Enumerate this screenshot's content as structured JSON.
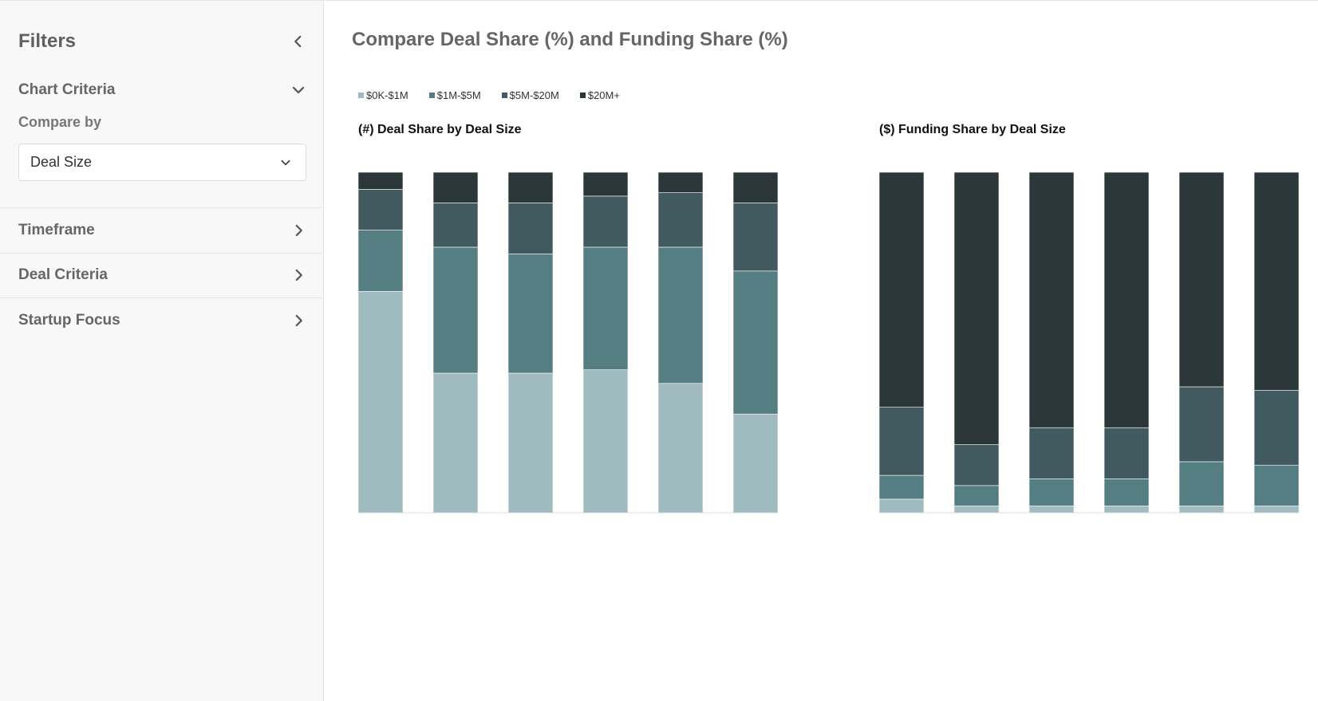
{
  "sidebar": {
    "title": "Filters",
    "chart_criteria": {
      "label": "Chart Criteria",
      "compare_label": "Compare by",
      "compare_value": "Deal Size"
    },
    "sections": [
      {
        "label": "Timeframe"
      },
      {
        "label": "Deal Criteria"
      },
      {
        "label": "Startup Focus"
      }
    ]
  },
  "main": {
    "title": "Compare Deal Share (%) and Funding Share (%)"
  },
  "colors": {
    "s1": "#a0bbbf",
    "s2": "#557e83",
    "s3": "#415a60",
    "s4": "#2b3639"
  },
  "chart_data": [
    {
      "type": "bar",
      "stacked": true,
      "title": "(#) Deal Share by Deal Size",
      "categories": [
        "",
        "",
        "",
        "",
        "",
        ""
      ],
      "ylim": [
        0,
        100
      ],
      "legend": "top-left",
      "series": [
        {
          "name": "$0K-$1M",
          "values": [
            65,
            41,
            41,
            42,
            38,
            29
          ]
        },
        {
          "name": "$1M-$5M",
          "values": [
            18,
            37,
            35,
            36,
            40,
            42
          ]
        },
        {
          "name": "$5M-$20M",
          "values": [
            12,
            13,
            15,
            15,
            16,
            20
          ]
        },
        {
          "name": "$20M+",
          "values": [
            5,
            9,
            9,
            7,
            6,
            9
          ]
        }
      ]
    },
    {
      "type": "bar",
      "stacked": true,
      "title": "($) Funding Share by Deal Size",
      "categories": [
        "",
        "",
        "",
        "",
        "",
        ""
      ],
      "ylim": [
        0,
        100
      ],
      "series": [
        {
          "name": "$0K-$1M",
          "values": [
            4,
            2,
            2,
            2,
            2,
            2
          ]
        },
        {
          "name": "$1M-$5M",
          "values": [
            7,
            6,
            8,
            8,
            13,
            12
          ]
        },
        {
          "name": "$5M-$20M",
          "values": [
            20,
            12,
            15,
            15,
            22,
            22
          ]
        },
        {
          "name": "$20M+",
          "values": [
            69,
            80,
            75,
            75,
            63,
            64
          ]
        }
      ]
    }
  ]
}
